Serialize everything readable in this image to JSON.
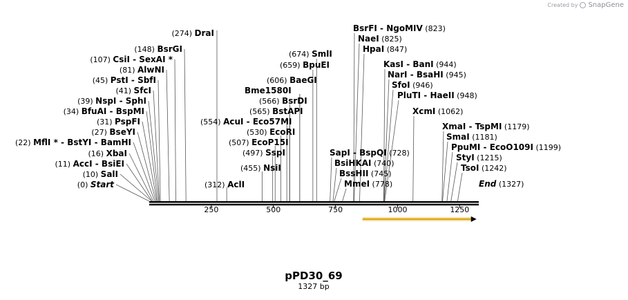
{
  "map": {
    "name": "pPD30_69",
    "length_label": "1327 bp",
    "length": 1327,
    "credit_prefix": "Created by",
    "credit_brand": "SnapGene",
    "ruler_ticks": [
      "250",
      "500",
      "750",
      "1000",
      "1250"
    ],
    "ruler_values": [
      250,
      500,
      750,
      1000,
      1250
    ],
    "feature": {
      "name": "feature-arrow",
      "start": 859,
      "end": 1318,
      "color": "#d9a400",
      "direction": "forward"
    },
    "left_labels": [
      {
        "pos": "(274)",
        "names": [
          "DraI"
        ],
        "cut": 274
      },
      {
        "pos": "(148)",
        "names": [
          "BsrGI"
        ],
        "cut": 148
      },
      {
        "pos": "(107)",
        "names": [
          "CsiI",
          "SexAI *"
        ],
        "cut": 107
      },
      {
        "pos": "(81)",
        "names": [
          "AlwNI"
        ],
        "cut": 81
      },
      {
        "pos": "(45)",
        "names": [
          "PstI",
          "SbfI"
        ],
        "cut": 45
      },
      {
        "pos": "(41)",
        "names": [
          "SfcI"
        ],
        "cut": 41
      },
      {
        "pos": "(39)",
        "names": [
          "NspI",
          "SphI"
        ],
        "cut": 39
      },
      {
        "pos": "(34)",
        "names": [
          "BfuAI",
          "BspMI"
        ],
        "cut": 34
      },
      {
        "pos": "(31)",
        "names": [
          "PspFI"
        ],
        "cut": 31
      },
      {
        "pos": "(27)",
        "names": [
          "BseYI"
        ],
        "cut": 27
      },
      {
        "pos": "(22)",
        "names": [
          "MflI *",
          "BstYI",
          "BamHI"
        ],
        "cut": 22
      },
      {
        "pos": "(16)",
        "names": [
          "XbaI"
        ],
        "cut": 16
      },
      {
        "pos": "(11)",
        "names": [
          "AccI",
          "BsiEI"
        ],
        "cut": 11
      },
      {
        "pos": "(10)",
        "names": [
          "SalI"
        ],
        "cut": 10
      },
      {
        "pos": "(0)",
        "names": [
          "Start"
        ],
        "cut": 0,
        "italic": true
      }
    ],
    "mid_labels": [
      {
        "pos": "(554)",
        "names": [
          "AcuI",
          "Eco57MI"
        ],
        "cut": 554
      },
      {
        "pos": "(312)",
        "names": [
          "AclI"
        ],
        "cut": 312
      },
      {
        "pos": "(674)",
        "names": [
          "SmlI"
        ],
        "cut": 674
      },
      {
        "pos": "(659)",
        "names": [
          "BpuEI"
        ],
        "cut": 659
      },
      {
        "pos": "(606)",
        "names": [
          "BaeGI"
        ],
        "cut": 606
      },
      {
        "pos": "",
        "names": [
          "Bme1580I"
        ],
        "cut": 606
      },
      {
        "pos": "(566)",
        "names": [
          "BsrDI"
        ],
        "cut": 566
      },
      {
        "pos": "(565)",
        "names": [
          "BstAPI"
        ],
        "cut": 565
      },
      {
        "pos": "(530)",
        "names": [
          "EcoRI"
        ],
        "cut": 530
      },
      {
        "pos": "(507)",
        "names": [
          "EcoP15I"
        ],
        "cut": 507
      },
      {
        "pos": "(497)",
        "names": [
          "SspI"
        ],
        "cut": 497
      },
      {
        "pos": "(455)",
        "names": [
          "NsiI"
        ],
        "cut": 455
      }
    ],
    "right_labels": [
      {
        "pos": "(823)",
        "names": [
          "BsrFI",
          "NgoMIV"
        ],
        "cut": 823
      },
      {
        "pos": "(825)",
        "names": [
          "NaeI"
        ],
        "cut": 825
      },
      {
        "pos": "(847)",
        "names": [
          "HpaI"
        ],
        "cut": 847
      },
      {
        "pos": "(944)",
        "names": [
          "KasI",
          "BanI"
        ],
        "cut": 944
      },
      {
        "pos": "(945)",
        "names": [
          "NarI",
          "BsaHI"
        ],
        "cut": 945
      },
      {
        "pos": "(946)",
        "names": [
          "SfoI"
        ],
        "cut": 946
      },
      {
        "pos": "(948)",
        "names": [
          "PluTI",
          "HaeII"
        ],
        "cut": 948
      },
      {
        "pos": "(1062)",
        "names": [
          "XcmI"
        ],
        "cut": 1062
      },
      {
        "pos": "(1179)",
        "names": [
          "XmaI",
          "TspMI"
        ],
        "cut": 1179
      },
      {
        "pos": "(1181)",
        "names": [
          "SmaI"
        ],
        "cut": 1181
      },
      {
        "pos": "(1199)",
        "names": [
          "PpuMI",
          "EcoO109I"
        ],
        "cut": 1199
      },
      {
        "pos": "(1215)",
        "names": [
          "StyI"
        ],
        "cut": 1215
      },
      {
        "pos": "(1242)",
        "names": [
          "TsoI"
        ],
        "cut": 1242
      },
      {
        "pos": "(1327)",
        "names": [
          "End"
        ],
        "cut": 1327,
        "italic": true
      }
    ],
    "lower_mid_labels": [
      {
        "pos": "(728)",
        "names": [
          "SapI",
          "BspQI"
        ],
        "cut": 728
      },
      {
        "pos": "(740)",
        "names": [
          "BsiHKAI"
        ],
        "cut": 740
      },
      {
        "pos": "(745)",
        "names": [
          "BssHII"
        ],
        "cut": 745
      },
      {
        "pos": "(778)",
        "names": [
          "MmeI"
        ],
        "cut": 778
      }
    ]
  }
}
